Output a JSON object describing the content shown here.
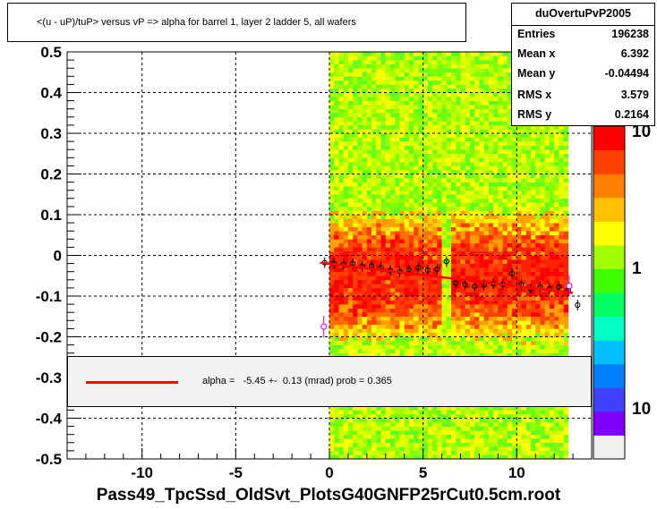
{
  "chart_data": {
    "type": "heatmap",
    "title": "<(u - uP)/tuP> versus   vP => alpha for barrel 1, layer 2 ladder 5, all wafers",
    "xlabel": "",
    "ylabel": "",
    "xlim": [
      -14,
      14
    ],
    "ylim": [
      -0.5,
      0.5
    ],
    "x_ticks": [
      -10,
      -5,
      0,
      5,
      10
    ],
    "x_tick_labels": [
      "-10",
      "-5",
      "0",
      "5",
      "10"
    ],
    "y_ticks": [
      -0.5,
      -0.4,
      -0.3,
      -0.2,
      -0.1,
      0,
      0.1,
      0.2,
      0.3,
      0.4,
      0.5
    ],
    "y_tick_labels": [
      "-0.5",
      "-0.4",
      "-0.3",
      "-0.2",
      "-0.1",
      "0",
      "0.1",
      "0.2",
      "0.3",
      "0.4",
      "0.5"
    ],
    "grid": true,
    "color_scale": {
      "type": "log",
      "labels": [
        "10",
        "1",
        "10"
      ],
      "palette": [
        "#f0f0f0",
        "#8000ff",
        "#4040ff",
        "#0080ff",
        "#00c0ff",
        "#00ffc0",
        "#00ff60",
        "#40ff00",
        "#a0ff00",
        "#ffff00",
        "#ffc000",
        "#ff8000",
        "#ff4000",
        "#ff0000"
      ]
    },
    "profile_points": [
      {
        "x": -0.25,
        "y": -0.018
      },
      {
        "x": 0.25,
        "y": -0.02
      },
      {
        "x": 0.75,
        "y": -0.022
      },
      {
        "x": 1.25,
        "y": -0.02
      },
      {
        "x": 1.75,
        "y": -0.027
      },
      {
        "x": 2.25,
        "y": -0.026
      },
      {
        "x": 2.75,
        "y": -0.03
      },
      {
        "x": 3.25,
        "y": -0.037
      },
      {
        "x": 3.75,
        "y": -0.04
      },
      {
        "x": 4.25,
        "y": -0.035
      },
      {
        "x": 4.75,
        "y": -0.03
      },
      {
        "x": 5.25,
        "y": -0.036
      },
      {
        "x": 5.75,
        "y": -0.034
      },
      {
        "x": 6.25,
        "y": -0.015
      },
      {
        "x": 6.75,
        "y": -0.068
      },
      {
        "x": 7.25,
        "y": -0.072
      },
      {
        "x": 7.75,
        "y": -0.076
      },
      {
        "x": 8.25,
        "y": -0.072
      },
      {
        "x": 8.75,
        "y": -0.07
      },
      {
        "x": 9.25,
        "y": -0.071
      },
      {
        "x": 9.75,
        "y": -0.045
      },
      {
        "x": 10.25,
        "y": -0.071
      },
      {
        "x": 10.75,
        "y": -0.083
      },
      {
        "x": 11.25,
        "y": -0.078
      },
      {
        "x": 11.75,
        "y": -0.082
      },
      {
        "x": 12.25,
        "y": -0.078
      },
      {
        "x": 12.75,
        "y": -0.085
      },
      {
        "x": 13.25,
        "y": -0.122
      }
    ],
    "outlier_points": [
      {
        "x": -0.3,
        "y": -0.175
      },
      {
        "x": 12.8,
        "y": -0.075
      }
    ],
    "fit_line": {
      "x1": -0.5,
      "y1": -0.018,
      "x2": 13.0,
      "y2": -0.092
    }
  },
  "stats": {
    "name": "duOvertuPvP2005",
    "rows": [
      {
        "label": "Entries",
        "value": "196238"
      },
      {
        "label": "Mean x",
        "value": "6.392"
      },
      {
        "label": "Mean y",
        "value": "-0.04494"
      },
      {
        "label": "RMS x",
        "value": "3.579"
      },
      {
        "label": "RMS y",
        "value": "0.2164"
      }
    ]
  },
  "fit": {
    "text": "alpha =   -5.45 +-  0.13 (mrad) prob = 0.365",
    "line_color": "#ff0000"
  },
  "footer": "Pass49_TpcSsd_OldSvt_PlotsG40GNFP25rCut0.5cm.root"
}
